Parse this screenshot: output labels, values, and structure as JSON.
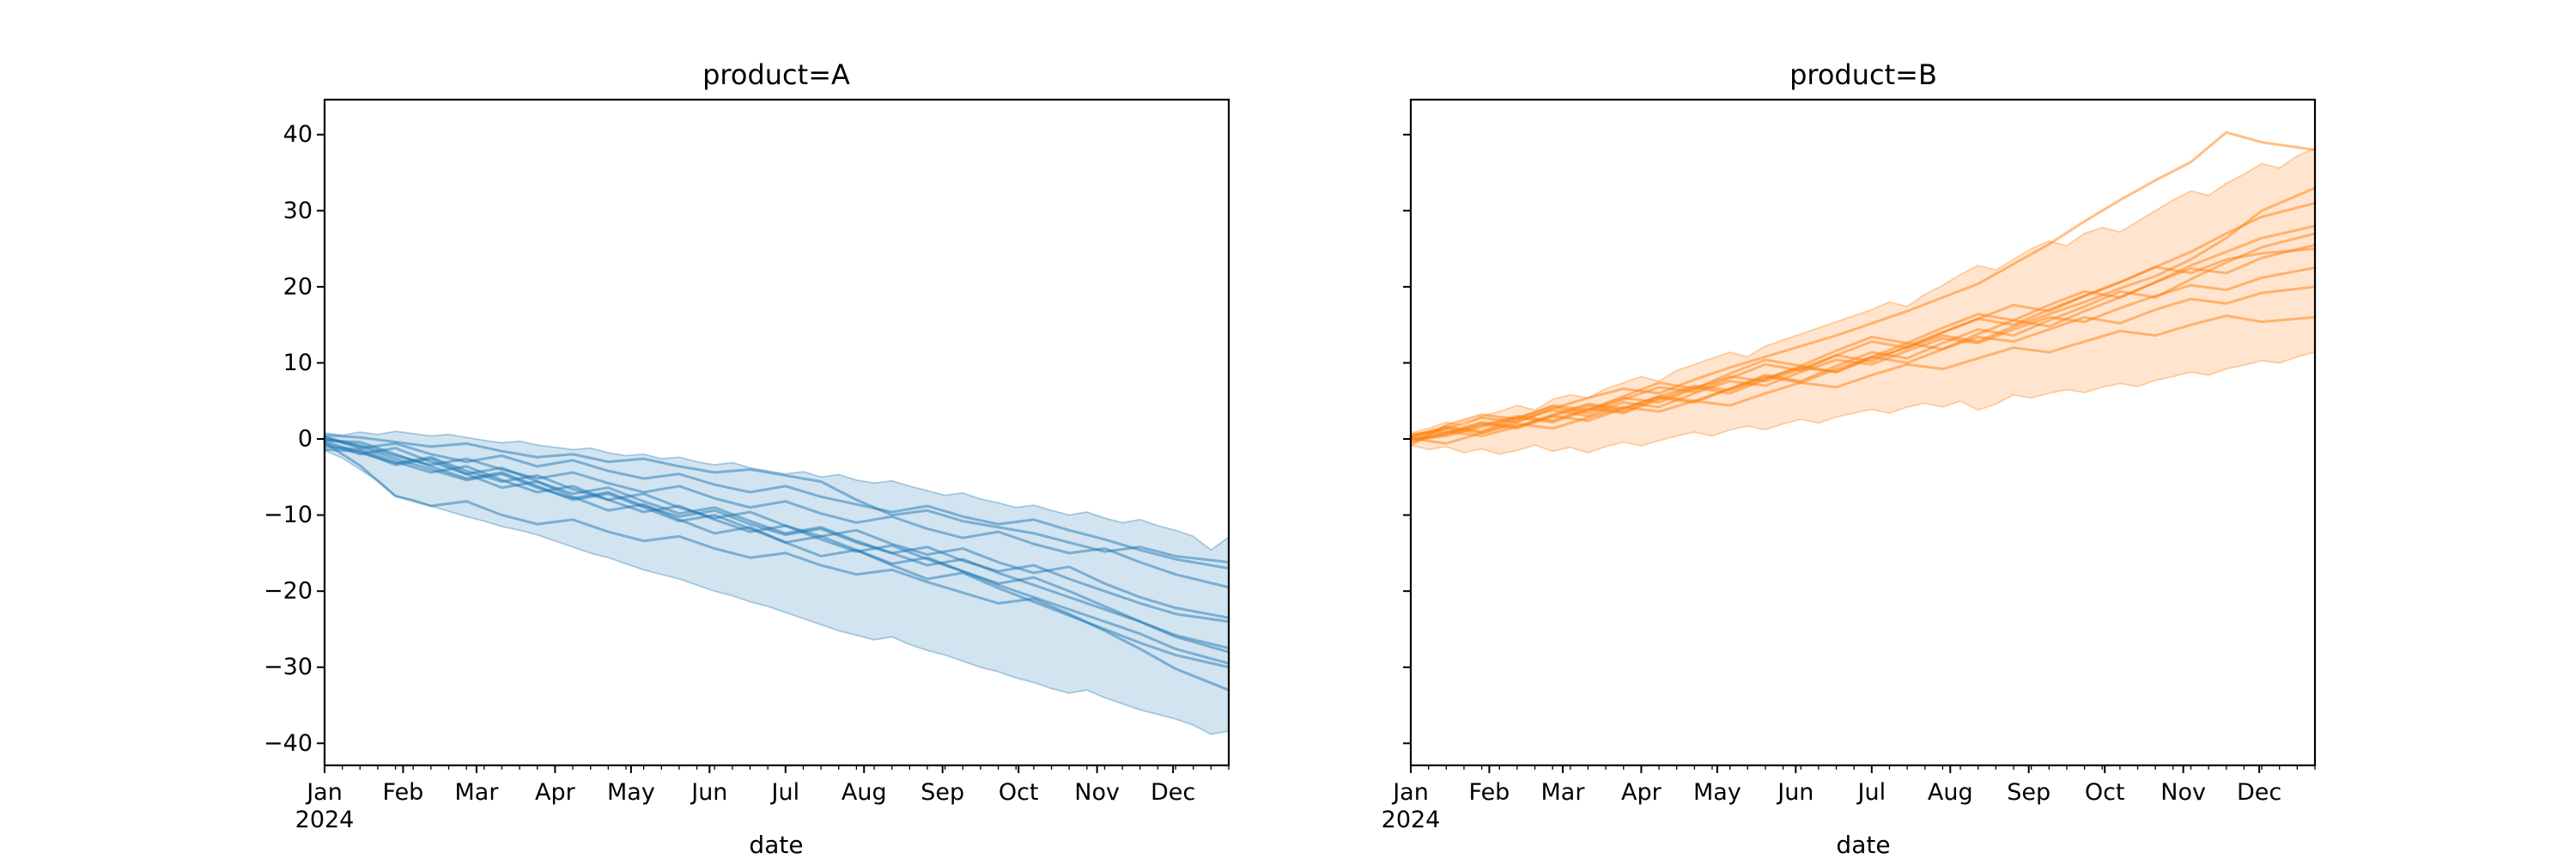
{
  "figure": {
    "background": "#ffffff",
    "year_shown": "2024"
  },
  "chart_data": [
    {
      "type": "line",
      "title": "product=A",
      "xlabel": "date",
      "color": "#1f77b4",
      "x_tick_labels": [
        "Jan",
        "Feb",
        "Mar",
        "Apr",
        "May",
        "Jun",
        "Jul",
        "Aug",
        "Sep",
        "Oct",
        "Nov",
        "Dec"
      ],
      "x_year_label": "2024",
      "month_day_offsets": [
        0,
        31,
        60,
        91,
        121,
        152,
        182,
        213,
        244,
        274,
        305,
        335
      ],
      "minor_tick_every_days": 7,
      "x_total_days": 357,
      "y_tick_values": [
        40,
        30,
        20,
        10,
        0,
        -10,
        -20,
        -30,
        -40
      ],
      "y_tick_labels": [
        "40",
        "30",
        "20",
        "10",
        "0",
        "−10",
        "−20",
        "−30",
        "−40"
      ],
      "show_y_tick_labels": true,
      "ylim": [
        -42.9,
        44.6
      ],
      "grid": false,
      "legend": "none",
      "band": {
        "x_week_step": 1,
        "upper": [
          0.8,
          0.5,
          0.9,
          0.6,
          1.0,
          0.7,
          0.4,
          0.6,
          0.2,
          -0.2,
          -0.5,
          -0.3,
          -0.8,
          -1.1,
          -1.4,
          -1.2,
          -1.8,
          -2.2,
          -2.0,
          -2.6,
          -2.4,
          -3.0,
          -3.4,
          -3.1,
          -3.8,
          -4.2,
          -4.6,
          -4.3,
          -5.0,
          -4.7,
          -5.4,
          -5.8,
          -5.5,
          -6.2,
          -6.8,
          -7.4,
          -7.1,
          -7.9,
          -8.4,
          -9.0,
          -8.7,
          -9.4,
          -10.0,
          -9.6,
          -10.4,
          -11.0,
          -10.6,
          -11.4,
          -12.0,
          -12.8,
          -14.6,
          -12.9
        ],
        "lower": [
          -1.5,
          -2.5,
          -4.0,
          -5.5,
          -7.5,
          -8.0,
          -8.8,
          -9.5,
          -10.2,
          -10.8,
          -11.5,
          -12.0,
          -12.6,
          -13.4,
          -14.2,
          -15.0,
          -15.6,
          -16.4,
          -17.2,
          -17.8,
          -18.4,
          -19.2,
          -20.0,
          -20.6,
          -21.4,
          -22.0,
          -22.8,
          -23.6,
          -24.4,
          -25.2,
          -25.8,
          -26.4,
          -26.0,
          -27.0,
          -27.8,
          -28.4,
          -29.2,
          -30.0,
          -30.6,
          -31.4,
          -32.0,
          -32.8,
          -33.4,
          -33.0,
          -34.0,
          -34.8,
          -35.6,
          -36.2,
          -36.8,
          -37.6,
          -38.8,
          -38.4
        ]
      },
      "knot_weeks": [
        0,
        2,
        4,
        6,
        8,
        10,
        12,
        14,
        16,
        18,
        20,
        22,
        24,
        26,
        28,
        30,
        32,
        34,
        36,
        38,
        40,
        42,
        44,
        46,
        48,
        51
      ],
      "series": [
        {
          "name": "unit-1",
          "values": [
            0.5,
            0.2,
            -0.4,
            -1.0,
            -0.6,
            -1.6,
            -2.4,
            -2.0,
            -3.0,
            -2.6,
            -3.6,
            -4.4,
            -4.0,
            -4.8,
            -5.6,
            -8.0,
            -10.0,
            -9.4,
            -10.8,
            -11.6,
            -12.4,
            -13.6,
            -14.8,
            -14.2,
            -15.4,
            -16.2
          ]
        },
        {
          "name": "unit-2",
          "values": [
            0.2,
            -1.2,
            -0.6,
            -2.0,
            -3.0,
            -2.2,
            -3.6,
            -2.8,
            -4.2,
            -5.2,
            -4.6,
            -6.0,
            -7.0,
            -6.2,
            -7.6,
            -8.6,
            -9.6,
            -8.8,
            -10.2,
            -11.2,
            -10.6,
            -12.0,
            -13.2,
            -14.6,
            -15.8,
            -17.0
          ]
        },
        {
          "name": "unit-3",
          "values": [
            0.0,
            -0.8,
            -2.2,
            -3.4,
            -2.6,
            -4.0,
            -5.2,
            -4.4,
            -5.8,
            -7.0,
            -6.2,
            -7.8,
            -9.0,
            -8.2,
            -9.8,
            -11.0,
            -10.2,
            -11.8,
            -13.0,
            -12.2,
            -13.8,
            -15.0,
            -14.4,
            -16.2,
            -17.8,
            -19.5
          ]
        },
        {
          "name": "unit-4",
          "values": [
            -0.3,
            -1.8,
            -3.2,
            -2.4,
            -4.2,
            -5.6,
            -4.8,
            -6.6,
            -8.0,
            -7.2,
            -9.0,
            -10.4,
            -9.6,
            -11.4,
            -12.8,
            -12.0,
            -13.8,
            -15.2,
            -14.4,
            -16.2,
            -17.6,
            -16.8,
            -19.0,
            -20.8,
            -22.2,
            -23.5
          ]
        },
        {
          "name": "unit-5",
          "values": [
            0.3,
            -1.0,
            -2.6,
            -4.0,
            -5.4,
            -4.6,
            -6.4,
            -7.8,
            -7.0,
            -8.8,
            -10.2,
            -9.4,
            -11.2,
            -12.6,
            -11.8,
            -13.6,
            -15.0,
            -14.2,
            -16.0,
            -17.4,
            -16.6,
            -18.4,
            -20.0,
            -21.6,
            -23.0,
            -24.0
          ]
        },
        {
          "name": "unit-6",
          "values": [
            -0.6,
            -2.0,
            -1.2,
            -3.0,
            -4.6,
            -3.8,
            -5.6,
            -7.2,
            -6.4,
            -8.2,
            -9.8,
            -9.0,
            -10.8,
            -12.4,
            -11.6,
            -13.4,
            -15.0,
            -16.6,
            -15.8,
            -17.6,
            -19.2,
            -20.8,
            -22.4,
            -24.0,
            -25.8,
            -27.5
          ]
        },
        {
          "name": "unit-7",
          "values": [
            -1.0,
            -1.4,
            -3.0,
            -4.4,
            -3.6,
            -5.4,
            -7.0,
            -6.2,
            -8.0,
            -9.6,
            -8.8,
            -10.6,
            -12.2,
            -11.4,
            -13.2,
            -14.8,
            -14.0,
            -15.8,
            -17.4,
            -19.0,
            -18.2,
            -20.0,
            -22.0,
            -24.0,
            -26.0,
            -28.0
          ]
        },
        {
          "name": "unit-8",
          "values": [
            -0.2,
            -0.4,
            -2.0,
            -3.6,
            -5.2,
            -4.4,
            -6.2,
            -8.0,
            -7.2,
            -9.0,
            -10.8,
            -10.0,
            -11.8,
            -13.6,
            -12.8,
            -14.6,
            -16.4,
            -15.6,
            -17.4,
            -19.2,
            -20.8,
            -22.4,
            -24.0,
            -25.6,
            -27.6,
            -29.5
          ]
        },
        {
          "name": "unit-9",
          "values": [
            -1.4,
            -1.6,
            -3.4,
            -2.6,
            -4.6,
            -6.4,
            -5.6,
            -7.6,
            -9.4,
            -8.6,
            -10.6,
            -12.4,
            -11.6,
            -13.6,
            -15.4,
            -14.6,
            -16.6,
            -18.4,
            -17.6,
            -19.6,
            -21.4,
            -23.2,
            -25.0,
            -26.8,
            -28.4,
            -30.0
          ]
        },
        {
          "name": "unit-10",
          "values": [
            -0.5,
            -3.5,
            -7.5,
            -8.8,
            -8.2,
            -10.0,
            -11.2,
            -10.6,
            -12.2,
            -13.4,
            -12.8,
            -14.4,
            -15.6,
            -15.0,
            -16.6,
            -17.8,
            -17.2,
            -18.8,
            -20.2,
            -21.6,
            -21.0,
            -23.0,
            -25.2,
            -27.6,
            -30.2,
            -33.0
          ]
        }
      ]
    },
    {
      "type": "line",
      "title": "product=B",
      "xlabel": "date",
      "color": "#ff7f0e",
      "x_tick_labels": [
        "Jan",
        "Feb",
        "Mar",
        "Apr",
        "May",
        "Jun",
        "Jul",
        "Aug",
        "Sep",
        "Oct",
        "Nov",
        "Dec"
      ],
      "x_year_label": "2024",
      "month_day_offsets": [
        0,
        31,
        60,
        91,
        121,
        152,
        182,
        213,
        244,
        274,
        305,
        335
      ],
      "minor_tick_every_days": 7,
      "x_total_days": 357,
      "y_tick_values": [
        40,
        30,
        20,
        10,
        0,
        -10,
        -20,
        -30,
        -40
      ],
      "y_tick_labels": [
        "40",
        "30",
        "20",
        "10",
        "0",
        "−10",
        "−20",
        "−30",
        "−40"
      ],
      "show_y_tick_labels": false,
      "ylim": [
        -42.9,
        44.6
      ],
      "grid": false,
      "legend": "none",
      "band": {
        "x_week_step": 1,
        "upper": [
          0.8,
          1.4,
          2.2,
          1.8,
          3.0,
          3.6,
          4.4,
          3.8,
          5.2,
          5.8,
          5.4,
          6.6,
          7.4,
          8.2,
          7.6,
          9.0,
          9.8,
          10.6,
          11.4,
          10.8,
          12.2,
          13.0,
          13.8,
          14.6,
          15.4,
          16.2,
          17.0,
          18.0,
          17.4,
          19.0,
          20.2,
          21.6,
          22.8,
          22.2,
          23.6,
          25.0,
          26.0,
          25.4,
          27.0,
          27.8,
          27.2,
          28.6,
          30.0,
          31.4,
          32.6,
          32.0,
          33.6,
          34.8,
          36.2,
          35.6,
          37.2,
          38.2
        ],
        "lower": [
          -0.8,
          -1.4,
          -1.0,
          -1.8,
          -1.3,
          -2.0,
          -1.5,
          -0.8,
          -1.6,
          -1.1,
          -1.8,
          -1.0,
          -0.4,
          -0.9,
          -0.2,
          0.4,
          0.9,
          0.4,
          1.2,
          1.7,
          1.2,
          2.0,
          2.6,
          2.1,
          2.9,
          3.4,
          3.9,
          3.4,
          4.2,
          4.7,
          4.2,
          5.0,
          3.8,
          4.6,
          5.8,
          5.4,
          6.0,
          6.5,
          6.1,
          6.8,
          7.3,
          6.9,
          7.7,
          8.2,
          8.8,
          8.4,
          9.2,
          9.7,
          10.3,
          10.0,
          10.8,
          11.4
        ]
      },
      "knot_weeks": [
        0,
        2,
        4,
        6,
        8,
        10,
        12,
        14,
        16,
        18,
        20,
        22,
        24,
        26,
        28,
        30,
        32,
        34,
        36,
        38,
        40,
        42,
        44,
        46,
        48,
        51
      ],
      "series": [
        {
          "name": "unit-1",
          "values": [
            0.2,
            1.4,
            2.8,
            2.2,
            4.0,
            5.4,
            6.6,
            6.0,
            7.8,
            9.4,
            10.8,
            12.2,
            13.6,
            15.2,
            16.8,
            18.6,
            20.4,
            23.0,
            25.6,
            28.6,
            31.4,
            34.0,
            36.4,
            40.3,
            39.0,
            38.0
          ]
        },
        {
          "name": "unit-2",
          "values": [
            0.0,
            0.8,
            2.2,
            1.6,
            3.2,
            4.6,
            4.0,
            5.6,
            7.0,
            6.4,
            8.0,
            9.4,
            8.8,
            10.6,
            12.0,
            13.6,
            12.8,
            14.8,
            16.4,
            18.0,
            19.8,
            21.4,
            23.6,
            26.4,
            30.0,
            33.0
          ]
        },
        {
          "name": "unit-3",
          "values": [
            0.4,
            1.6,
            1.0,
            2.8,
            2.2,
            3.8,
            5.4,
            4.8,
            6.6,
            8.2,
            7.6,
            9.2,
            11.0,
            10.2,
            12.2,
            14.0,
            15.8,
            15.0,
            17.0,
            18.8,
            20.6,
            22.6,
            24.6,
            27.0,
            29.2,
            31.0
          ]
        },
        {
          "name": "unit-4",
          "values": [
            -0.4,
            0.6,
            1.8,
            3.0,
            2.4,
            4.0,
            3.4,
            5.2,
            6.8,
            6.0,
            7.8,
            9.6,
            8.8,
            10.8,
            12.6,
            11.8,
            13.8,
            15.6,
            14.8,
            16.8,
            18.6,
            20.6,
            22.8,
            24.6,
            26.4,
            28.0
          ]
        },
        {
          "name": "unit-5",
          "values": [
            0.6,
            1.0,
            0.4,
            1.6,
            3.0,
            4.4,
            3.6,
            5.4,
            4.8,
            6.6,
            8.4,
            7.6,
            9.6,
            11.4,
            10.6,
            12.6,
            14.4,
            13.6,
            15.6,
            17.4,
            19.4,
            18.6,
            21.0,
            23.2,
            25.2,
            27.0
          ]
        },
        {
          "name": "unit-6",
          "values": [
            -0.8,
            1.8,
            3.2,
            2.6,
            4.4,
            3.8,
            5.6,
            7.4,
            6.6,
            8.6,
            10.4,
            9.6,
            11.6,
            13.4,
            12.6,
            14.6,
            16.4,
            15.6,
            17.6,
            19.4,
            18.6,
            20.6,
            22.4,
            21.8,
            23.8,
            25.5
          ]
        },
        {
          "name": "unit-7",
          "values": [
            0.0,
            0.4,
            1.6,
            2.8,
            4.2,
            3.4,
            5.2,
            6.8,
            6.2,
            8.0,
            9.8,
            9.0,
            11.0,
            12.8,
            12.0,
            14.0,
            15.8,
            17.6,
            16.8,
            18.8,
            20.6,
            22.6,
            21.8,
            23.6,
            24.4,
            25.0
          ]
        },
        {
          "name": "unit-8",
          "values": [
            0.3,
            1.4,
            0.8,
            2.4,
            3.8,
            3.0,
            4.8,
            4.2,
            6.0,
            7.6,
            7.0,
            8.8,
            10.4,
            9.8,
            11.6,
            13.2,
            12.6,
            14.4,
            16.0,
            15.4,
            17.2,
            18.8,
            20.2,
            19.6,
            21.2,
            22.5
          ]
        },
        {
          "name": "unit-9",
          "values": [
            -0.2,
            0.8,
            2.0,
            1.4,
            3.0,
            2.4,
            4.0,
            5.6,
            5.0,
            6.6,
            8.2,
            7.4,
            9.2,
            10.8,
            10.0,
            11.8,
            13.4,
            12.8,
            14.4,
            16.0,
            15.2,
            17.0,
            18.4,
            17.8,
            19.2,
            20.0
          ]
        },
        {
          "name": "unit-10",
          "values": [
            0.1,
            -0.6,
            0.8,
            2.0,
            1.4,
            2.8,
            4.2,
            3.6,
            5.0,
            4.4,
            6.0,
            7.4,
            6.8,
            8.4,
            9.8,
            9.2,
            10.6,
            12.0,
            11.4,
            12.8,
            14.2,
            13.6,
            15.0,
            16.2,
            15.4,
            16.0
          ]
        }
      ]
    }
  ]
}
